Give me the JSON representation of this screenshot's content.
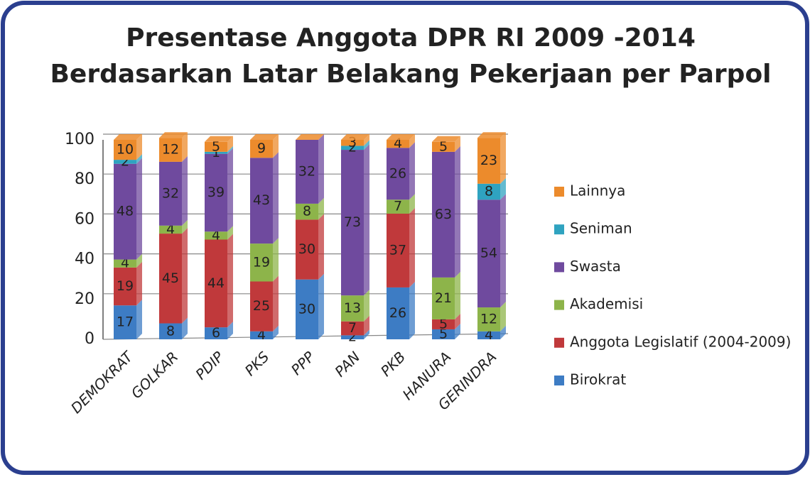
{
  "chart_data": {
    "type": "stacked-bar",
    "title": [
      "Presentase Anggota DPR RI 2009 -2014",
      "Berdasarkan Latar Belakang Pekerjaan per Parpol"
    ],
    "categories": [
      "DEMOKRAT",
      "GOLKAR",
      "PDIP",
      "PKS",
      "PPP",
      "PAN",
      "PKB",
      "HANURA",
      "GERINDRA"
    ],
    "series": [
      {
        "name": "Birokrat",
        "color": "#3d7cc4",
        "values": [
          17,
          8,
          6,
          4,
          30,
          2,
          26,
          5,
          4
        ]
      },
      {
        "name": "Anggota Legislatif (2004-2009)",
        "color": "#c0393b",
        "values": [
          19,
          45,
          44,
          25,
          30,
          7,
          37,
          5,
          0
        ]
      },
      {
        "name": "Akademisi",
        "color": "#8db44a",
        "values": [
          4,
          4,
          4,
          19,
          8,
          13,
          7,
          21,
          12
        ]
      },
      {
        "name": "Swasta",
        "color": "#6f4a9e",
        "values": [
          48,
          32,
          39,
          43,
          32,
          73,
          26,
          63,
          54
        ]
      },
      {
        "name": "Seniman",
        "color": "#2fa3c0",
        "values": [
          2,
          0,
          1,
          0,
          0,
          2,
          0,
          0,
          8
        ]
      },
      {
        "name": "Lainnya",
        "color": "#ec8b2c",
        "values": [
          10,
          12,
          5,
          9,
          0,
          3,
          4,
          5,
          23
        ]
      }
    ],
    "ylim": [
      0,
      100
    ],
    "yticks": [
      0,
      20,
      40,
      60,
      80,
      100
    ],
    "grid": true,
    "legend": "right"
  }
}
